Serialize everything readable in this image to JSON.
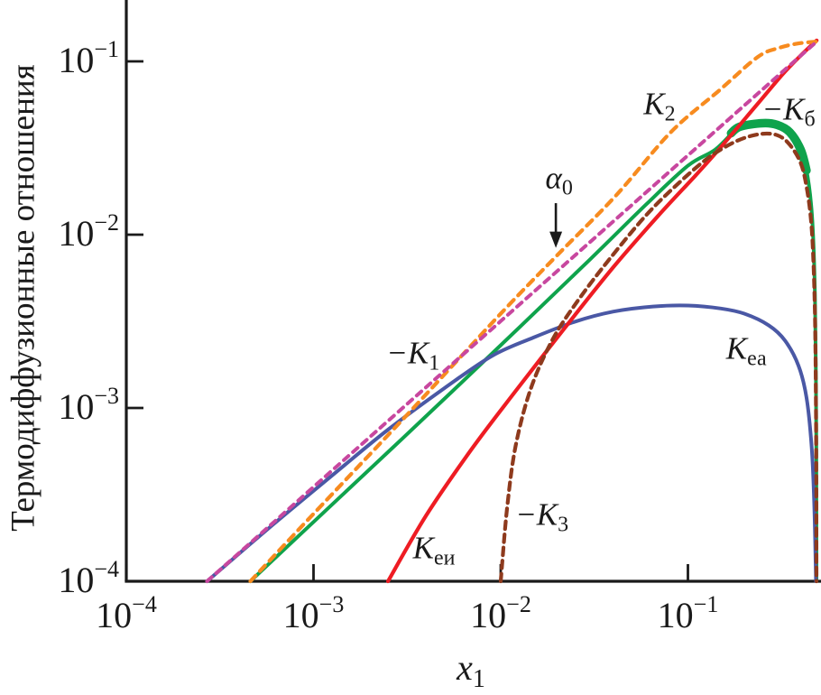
{
  "chart_data": {
    "type": "line",
    "title": "",
    "ylabel": "Термодиффузионные отношения",
    "xlabel": {
      "main": "x",
      "sub": "1"
    },
    "axis_color": "#1a1a1a",
    "background": "#ffffff",
    "grid": false,
    "legend": "none (inline curve labels)",
    "x_axis": {
      "scale": "log",
      "min": 0.0001,
      "max": 0.49,
      "ticks": [
        {
          "base": "10",
          "exp": "−4",
          "value": 0.0001
        },
        {
          "base": "10",
          "exp": "−3",
          "value": 0.001
        },
        {
          "base": "10",
          "exp": "−2",
          "value": 0.01
        },
        {
          "base": "10",
          "exp": "−1",
          "value": 0.1
        }
      ]
    },
    "y_axis": {
      "scale": "log",
      "min": 0.0001,
      "max": 0.226,
      "ticks": [
        {
          "base": "10",
          "exp": "−4",
          "value": 0.0001
        },
        {
          "base": "10",
          "exp": "−3",
          "value": 0.001
        },
        {
          "base": "10",
          "exp": "−2",
          "value": 0.01
        },
        {
          "base": "10",
          "exp": "−1",
          "value": 0.1
        }
      ]
    },
    "series": [
      {
        "name": "neg-kb",
        "label": "−K_б",
        "color": "#0fa34c",
        "style": "solid",
        "width": 4,
        "points": [
          [
            0.00046,
            0.0001
          ],
          [
            0.001,
            0.00022
          ],
          [
            0.003,
            0.00067
          ],
          [
            0.01,
            0.0023
          ],
          [
            0.03,
            0.0072
          ],
          [
            0.06,
            0.015
          ],
          [
            0.1,
            0.025
          ],
          [
            0.14,
            0.031
          ],
          [
            0.19,
            0.042
          ],
          [
            0.25,
            0.044
          ],
          [
            0.3,
            0.043
          ],
          [
            0.35,
            0.039
          ],
          [
            0.4,
            0.031
          ],
          [
            0.43,
            0.0235
          ],
          [
            0.455,
            0.015
          ],
          [
            0.468,
            0.009
          ],
          [
            0.477,
            0.0045
          ],
          [
            0.482,
            0.0018
          ],
          [
            0.485,
            0.0006
          ],
          [
            0.486,
            0.0001
          ]
        ],
        "thick_overlay": {
          "width": 9.5,
          "points": [
            [
              0.17,
              0.0385
            ],
            [
              0.19,
              0.042
            ],
            [
              0.25,
              0.044
            ],
            [
              0.3,
              0.043
            ],
            [
              0.35,
              0.039
            ],
            [
              0.4,
              0.031
            ],
            [
              0.43,
              0.0235
            ]
          ]
        }
      },
      {
        "name": "kea",
        "label": "K_еа",
        "color": "#4a58a5",
        "style": "solid",
        "width": 4,
        "points": [
          [
            0.00027,
            0.0001
          ],
          [
            0.0006,
            0.00021
          ],
          [
            0.0013,
            0.00042
          ],
          [
            0.0025,
            0.00075
          ],
          [
            0.005,
            0.0013
          ],
          [
            0.009,
            0.002
          ],
          [
            0.015,
            0.00255
          ],
          [
            0.025,
            0.00315
          ],
          [
            0.04,
            0.0036
          ],
          [
            0.065,
            0.00385
          ],
          [
            0.1,
            0.0039
          ],
          [
            0.15,
            0.00375
          ],
          [
            0.2,
            0.0035
          ],
          [
            0.27,
            0.003
          ],
          [
            0.33,
            0.00245
          ],
          [
            0.39,
            0.00175
          ],
          [
            0.43,
            0.00115
          ],
          [
            0.458,
            0.0006
          ],
          [
            0.472,
            0.0003
          ],
          [
            0.481,
            0.00013
          ],
          [
            0.483,
            0.0001
          ]
        ]
      },
      {
        "name": "kei",
        "label": "K_еи",
        "color": "#ee1c23",
        "style": "solid",
        "width": 4.2,
        "points": [
          [
            0.0025,
            0.0001
          ],
          [
            0.004,
            0.00024
          ],
          [
            0.007,
            0.00058
          ],
          [
            0.012,
            0.00125
          ],
          [
            0.022,
            0.0029
          ],
          [
            0.04,
            0.0065
          ],
          [
            0.07,
            0.013
          ],
          [
            0.11,
            0.022
          ],
          [
            0.15,
            0.032
          ],
          [
            0.236,
            0.057
          ],
          [
            0.32,
            0.084
          ],
          [
            0.4,
            0.108
          ],
          [
            0.487,
            0.132
          ]
        ]
      },
      {
        "name": "neg-k3",
        "label": "−K_3",
        "color": "#8e3a1d",
        "style": "dashed",
        "width": 4.2,
        "dash": [
          8.5,
          6
        ],
        "points": [
          [
            0.01,
            0.0001
          ],
          [
            0.0108,
            0.00026
          ],
          [
            0.012,
            0.0006
          ],
          [
            0.0145,
            0.0013
          ],
          [
            0.019,
            0.0025
          ],
          [
            0.026,
            0.0042
          ],
          [
            0.038,
            0.0072
          ],
          [
            0.06,
            0.013
          ],
          [
            0.09,
            0.02
          ],
          [
            0.13,
            0.028
          ],
          [
            0.18,
            0.0345
          ],
          [
            0.24,
            0.038
          ],
          [
            0.3,
            0.0375
          ],
          [
            0.35,
            0.033
          ],
          [
            0.4,
            0.026
          ],
          [
            0.43,
            0.019
          ],
          [
            0.455,
            0.012
          ],
          [
            0.468,
            0.007
          ],
          [
            0.477,
            0.0035
          ],
          [
            0.482,
            0.0014
          ],
          [
            0.485,
            0.0004
          ],
          [
            0.486,
            0.0001
          ]
        ]
      },
      {
        "name": "k2-alpha0",
        "label": "K_2 / α_0",
        "color": "#f78b1f",
        "style": "dashed",
        "width": 4.2,
        "dash": [
          8.5,
          7
        ],
        "points": [
          [
            0.00046,
            0.0001
          ],
          [
            0.001,
            0.000245
          ],
          [
            0.003,
            0.00086
          ],
          [
            0.01,
            0.0035
          ],
          [
            0.02,
            0.0076
          ],
          [
            0.041,
            0.0167
          ],
          [
            0.081,
            0.039
          ],
          [
            0.147,
            0.068
          ],
          [
            0.236,
            0.106
          ],
          [
            0.31,
            0.12
          ],
          [
            0.39,
            0.127
          ],
          [
            0.487,
            0.13
          ]
        ]
      },
      {
        "name": "neg-k1",
        "label": "−K_1",
        "color": "#c8479f",
        "style": "dashed",
        "width": 4,
        "dash": [
          7,
          6.5
        ],
        "points": [
          [
            0.00027,
            0.0001
          ],
          [
            0.001,
            0.00035
          ],
          [
            0.01,
            0.00317
          ],
          [
            0.1,
            0.0287
          ],
          [
            0.487,
            0.13
          ]
        ]
      }
    ],
    "annotations": [
      {
        "id": "k2",
        "main": "K",
        "sub": "2",
        "x": 0.0705,
        "y": 0.055
      },
      {
        "id": "neg-kb",
        "main": "−K",
        "sub": "б",
        "x": 0.345,
        "y": 0.051
      },
      {
        "id": "alpha0",
        "main": "α",
        "sub": "0",
        "x": 0.0205,
        "y": 0.0205,
        "arrow": {
          "x": 0.0197,
          "y_from": 0.0152,
          "y_to": 0.0098
        }
      },
      {
        "id": "neg-k1",
        "main": "−K",
        "sub": "1",
        "x": 0.0034,
        "y": 0.002
      },
      {
        "id": "kea",
        "main": "K",
        "sub": "еа",
        "x": 0.205,
        "y": 0.00213
      },
      {
        "id": "kei",
        "main": "K",
        "sub": "еи",
        "x": 0.0044,
        "y": 0.00015
      },
      {
        "id": "neg-k3",
        "main": "−K",
        "sub": "3",
        "x": 0.0166,
        "y": 0.000234
      }
    ]
  }
}
